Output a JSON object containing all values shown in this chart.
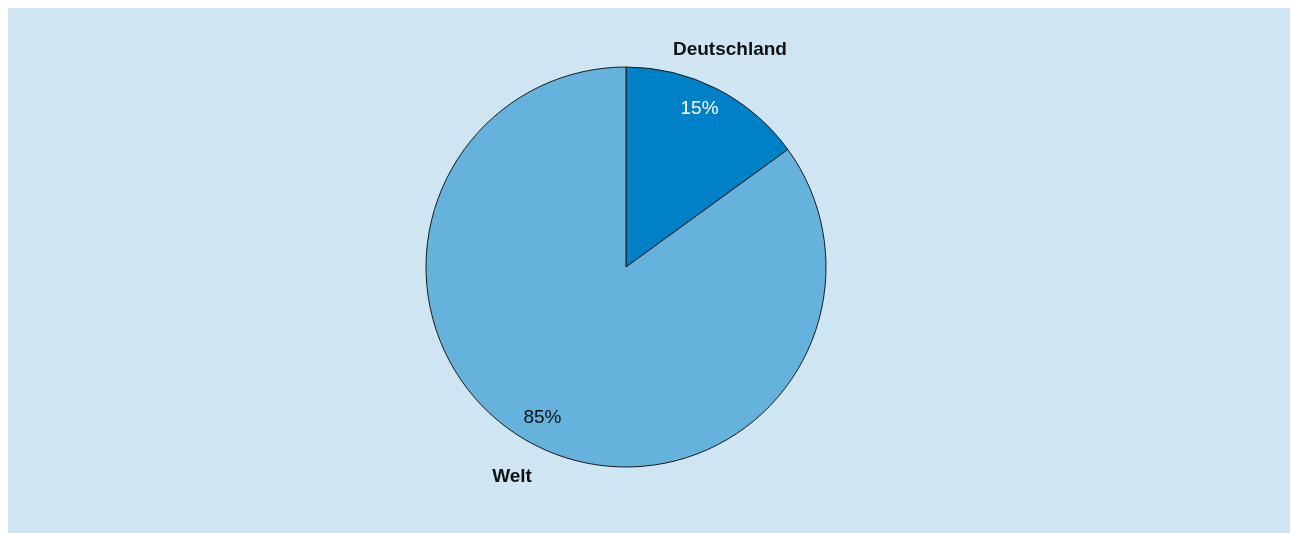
{
  "chart_data": {
    "type": "pie",
    "categories": [
      "Deutschland",
      "Welt"
    ],
    "values": [
      15,
      85
    ],
    "colors": [
      "#0080c6",
      "#65b2dc"
    ],
    "value_labels": [
      "15%",
      "85%"
    ],
    "legend": false
  }
}
